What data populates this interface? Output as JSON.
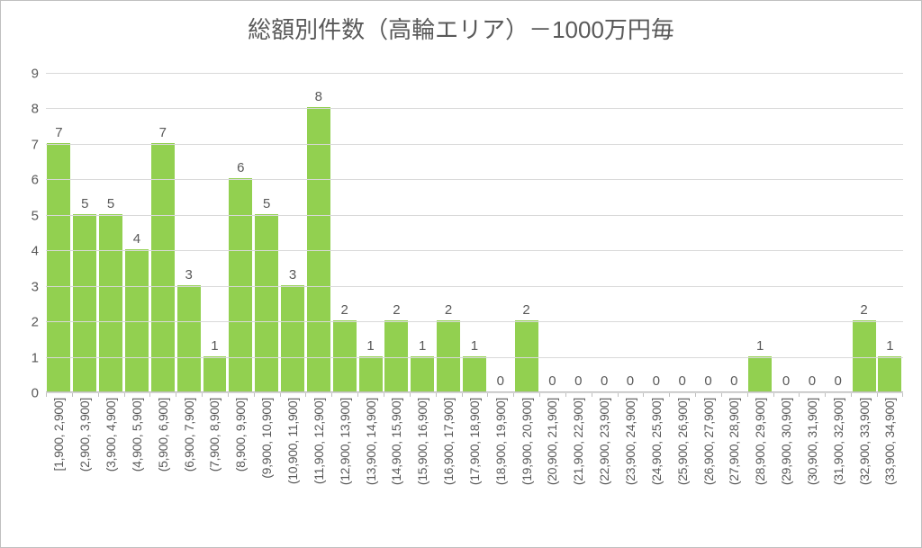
{
  "chart": {
    "type": "bar",
    "title": "総額別件数（高輪エリア）－1000万円毎",
    "title_fontsize": 26,
    "title_color": "#595959",
    "background_color": "#ffffff",
    "border_color": "#bfbfbf",
    "grid_color": "#d9d9d9",
    "axis_color": "#bfbfbf",
    "text_color": "#595959",
    "label_fontsize": 15,
    "xlabel_fontsize": 14,
    "xlabel_rotation": -90,
    "bar_color": "#92d050",
    "bar_width_ratio": 0.9,
    "ylim": [
      0,
      9
    ],
    "ytick_step": 1,
    "yticks": [
      0,
      1,
      2,
      3,
      4,
      5,
      6,
      7,
      8,
      9
    ],
    "categories": [
      "[1,900, 2,900]",
      "(2,900, 3,900]",
      "(3,900, 4,900]",
      "(4,900, 5,900]",
      "(5,900, 6,900]",
      "(6,900, 7,900]",
      "(7,900, 8,900]",
      "(8,900, 9,900]",
      "(9,900, 10,900]",
      "(10,900, 11,900]",
      "(11,900, 12,900]",
      "(12,900, 13,900]",
      "(13,900, 14,900]",
      "(14,900, 15,900]",
      "(15,900, 16,900]",
      "(16,900, 17,900]",
      "(17,900, 18,900]",
      "(18,900, 19,900]",
      "(19,900, 20,900]",
      "(20,900, 21,900]",
      "(21,900, 22,900]",
      "(22,900, 23,900]",
      "(23,900, 24,900]",
      "(24,900, 25,900]",
      "(25,900, 26,900]",
      "(26,900, 27,900]",
      "(27,900, 28,900]",
      "(28,900, 29,900]",
      "(29,900, 30,900]",
      "(30,900, 31,900]",
      "(31,900, 32,900]",
      "(32,900, 33,900]",
      "(33,900, 34,900]"
    ],
    "values": [
      7,
      5,
      5,
      4,
      7,
      3,
      1,
      6,
      5,
      3,
      8,
      2,
      1,
      2,
      1,
      2,
      1,
      0,
      2,
      0,
      0,
      0,
      0,
      0,
      0,
      0,
      0,
      1,
      0,
      0,
      0,
      2,
      1
    ]
  }
}
